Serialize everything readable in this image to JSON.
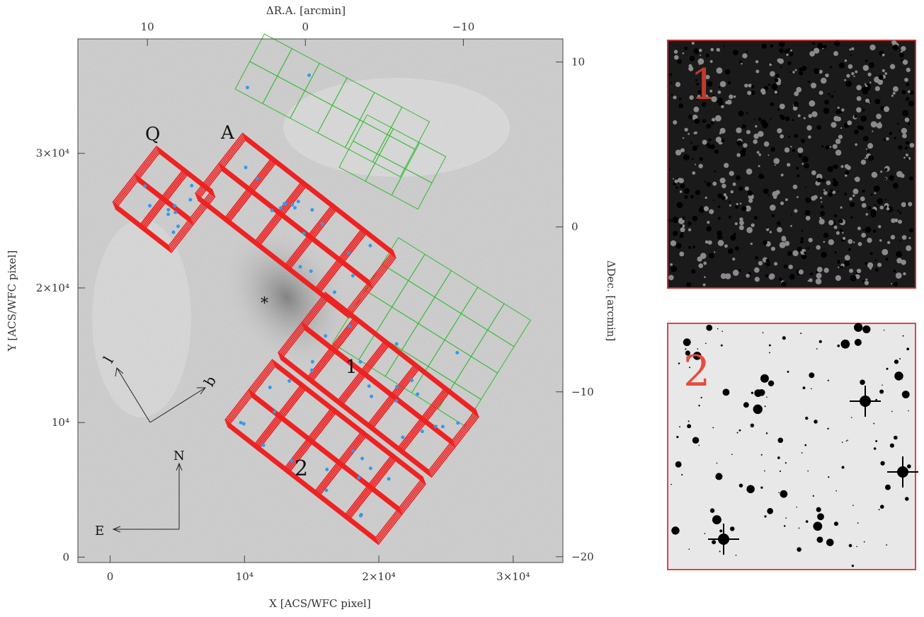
{
  "figure": {
    "main_panel": {
      "x_label": "X [ACS/WFC pixel]",
      "y_label": "Y [ACS/WFC pixel]",
      "top_label": "ΔR.A. [arcmin]",
      "right_label": "ΔDec. [arcmin]",
      "xlim": [
        -2400,
        33700
      ],
      "ylim": [
        -400,
        38500
      ],
      "top_lim": [
        14.4,
        -16.3
      ],
      "right_lim": [
        11.4,
        -20.35
      ],
      "xticks": [
        0,
        {
          "value": 10000,
          "label": "10⁴"
        },
        {
          "value": 20000,
          "label": "2×10⁴"
        },
        {
          "value": 30000,
          "label": "3×10⁴"
        }
      ],
      "yticks": [
        0,
        {
          "value": 10000,
          "label": "10⁴"
        },
        {
          "value": 20000,
          "label": "2×10⁴"
        },
        {
          "value": 30000,
          "label": "3×10⁴"
        }
      ],
      "top_ticks": [
        10,
        0,
        {
          "value": -10,
          "label": "−10"
        }
      ],
      "right_ticks": [
        10,
        0,
        {
          "value": -10,
          "label": "−10"
        },
        {
          "value": -20,
          "label": "−20"
        }
      ],
      "field_labels": [
        "Q",
        "A",
        "1",
        "2"
      ],
      "center_marker": "*",
      "galactic_labels": [
        "l",
        "b"
      ],
      "compass_labels": [
        "N",
        "E"
      ]
    },
    "insets": [
      {
        "label": "1"
      },
      {
        "label": "2"
      }
    ]
  }
}
